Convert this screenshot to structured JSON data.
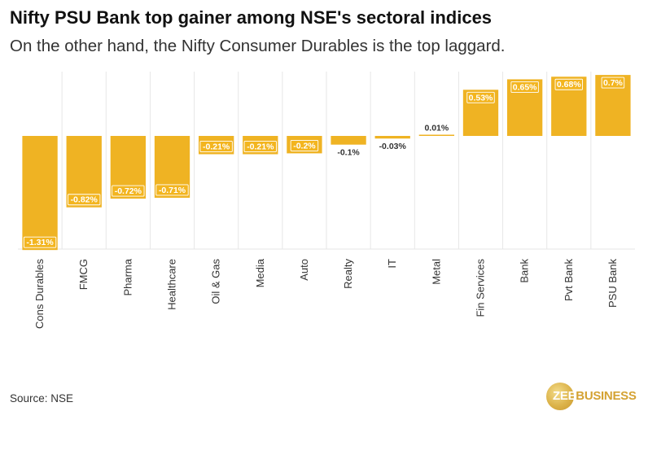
{
  "header": {
    "title": "Nifty PSU Bank top gainer among NSE's sectoral indices",
    "subtitle": "On the other hand, the Nifty Consumer Durables is the top laggard."
  },
  "footer": {
    "source": "Source: NSE",
    "logo_zee": "ZEE",
    "logo_business": "BUSINESS"
  },
  "colors": {
    "bar": "#efb323",
    "label_box": "#f3b51f",
    "gridline": "#e6e6e6"
  },
  "chart_data": {
    "type": "bar",
    "categories": [
      "Cons Durables",
      "FMCG",
      "Pharma",
      "Healthcare",
      "Oil & Gas",
      "Media",
      "Auto",
      "Realty",
      "IT",
      "Metal",
      "Fin Services",
      "Bank",
      "Pvt Bank",
      "PSU Bank"
    ],
    "values": [
      -1.31,
      -0.82,
      -0.72,
      -0.71,
      -0.21,
      -0.21,
      -0.2,
      -0.1,
      -0.03,
      0.01,
      0.53,
      0.65,
      0.68,
      0.7
    ],
    "data_labels": [
      "-1.31%",
      "-0.82%",
      "-0.72%",
      "-0.71%",
      "-0.21%",
      "-0.21%",
      "-0.2%",
      "-0.1%",
      "-0.03%",
      "0.01%",
      "0.53%",
      "0.65%",
      "0.68%",
      "0.7%"
    ],
    "title": "Nifty PSU Bank top gainer among NSE's sectoral indices",
    "subtitle": "On the other hand, the Nifty Consumer Durables is the top laggard.",
    "xlabel": "",
    "ylabel": "",
    "grid": true,
    "legend": "none"
  }
}
